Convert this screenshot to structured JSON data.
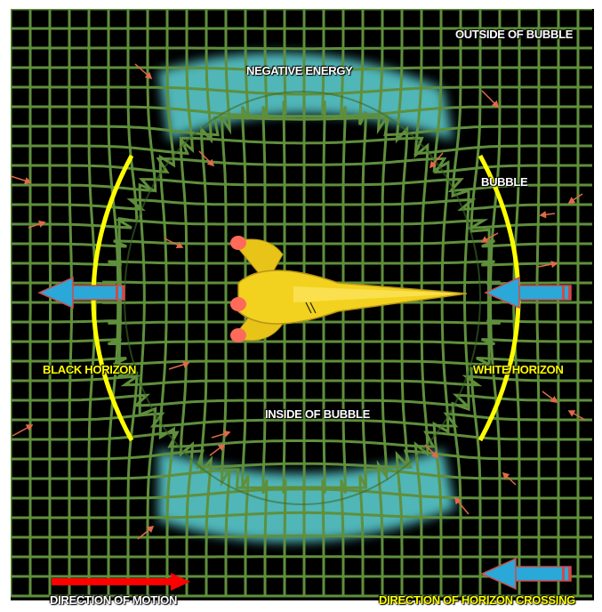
{
  "labels": {
    "outside_of_bubble": "OUTSIDE OF BUBBLE",
    "negative_energy": "NEGATIVE ENERGY",
    "bubble": "BUBBLE",
    "black_horizon": "BLACK HORIZON",
    "white_horizon": "WHITE HORIZON",
    "inside_of_bubble": "INSIDE OF BUBBLE",
    "direction_of_motion": "DIRECTION OF MOTION",
    "direction_of_horizon_crossing": "DIRECTION OF HORIZON CROSSING"
  },
  "colors": {
    "background": "#000000",
    "grid": "#5f8f3c",
    "negative_energy_band": "#5fd6d8",
    "horizon_arc": "#ffff00",
    "crossing_arrow": "#2aa8d8",
    "motion_arrow": "#ff0000",
    "field_arrow": "#e06a4a",
    "ship_body": "#f2d21e",
    "ship_engine": "#ff6a5a"
  },
  "icons": {
    "ship": "spaceship-icon",
    "crossing_arrow": "left-arrow-icon",
    "motion_arrow": "right-arrow-icon",
    "field_arrow": "small-arrow-icon"
  }
}
